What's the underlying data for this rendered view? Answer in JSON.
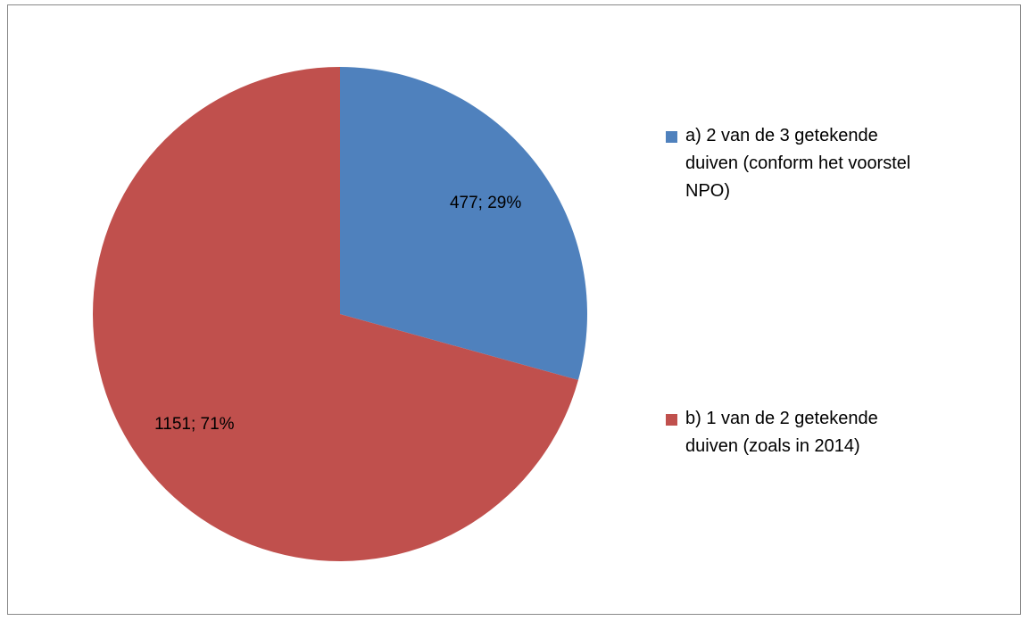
{
  "chart_data": {
    "type": "pie",
    "categories": [
      "a) 2 van de 3 getekende duiven (conform het voorstel NPO)",
      "b) 1 van de 2 getekende duiven (zoals in 2014)"
    ],
    "values": [
      477,
      1151
    ],
    "value_labels": [
      "477; 29%",
      "1151; 71%"
    ],
    "colors": [
      "#4f81bd",
      "#c0504d"
    ],
    "legend": "right"
  }
}
